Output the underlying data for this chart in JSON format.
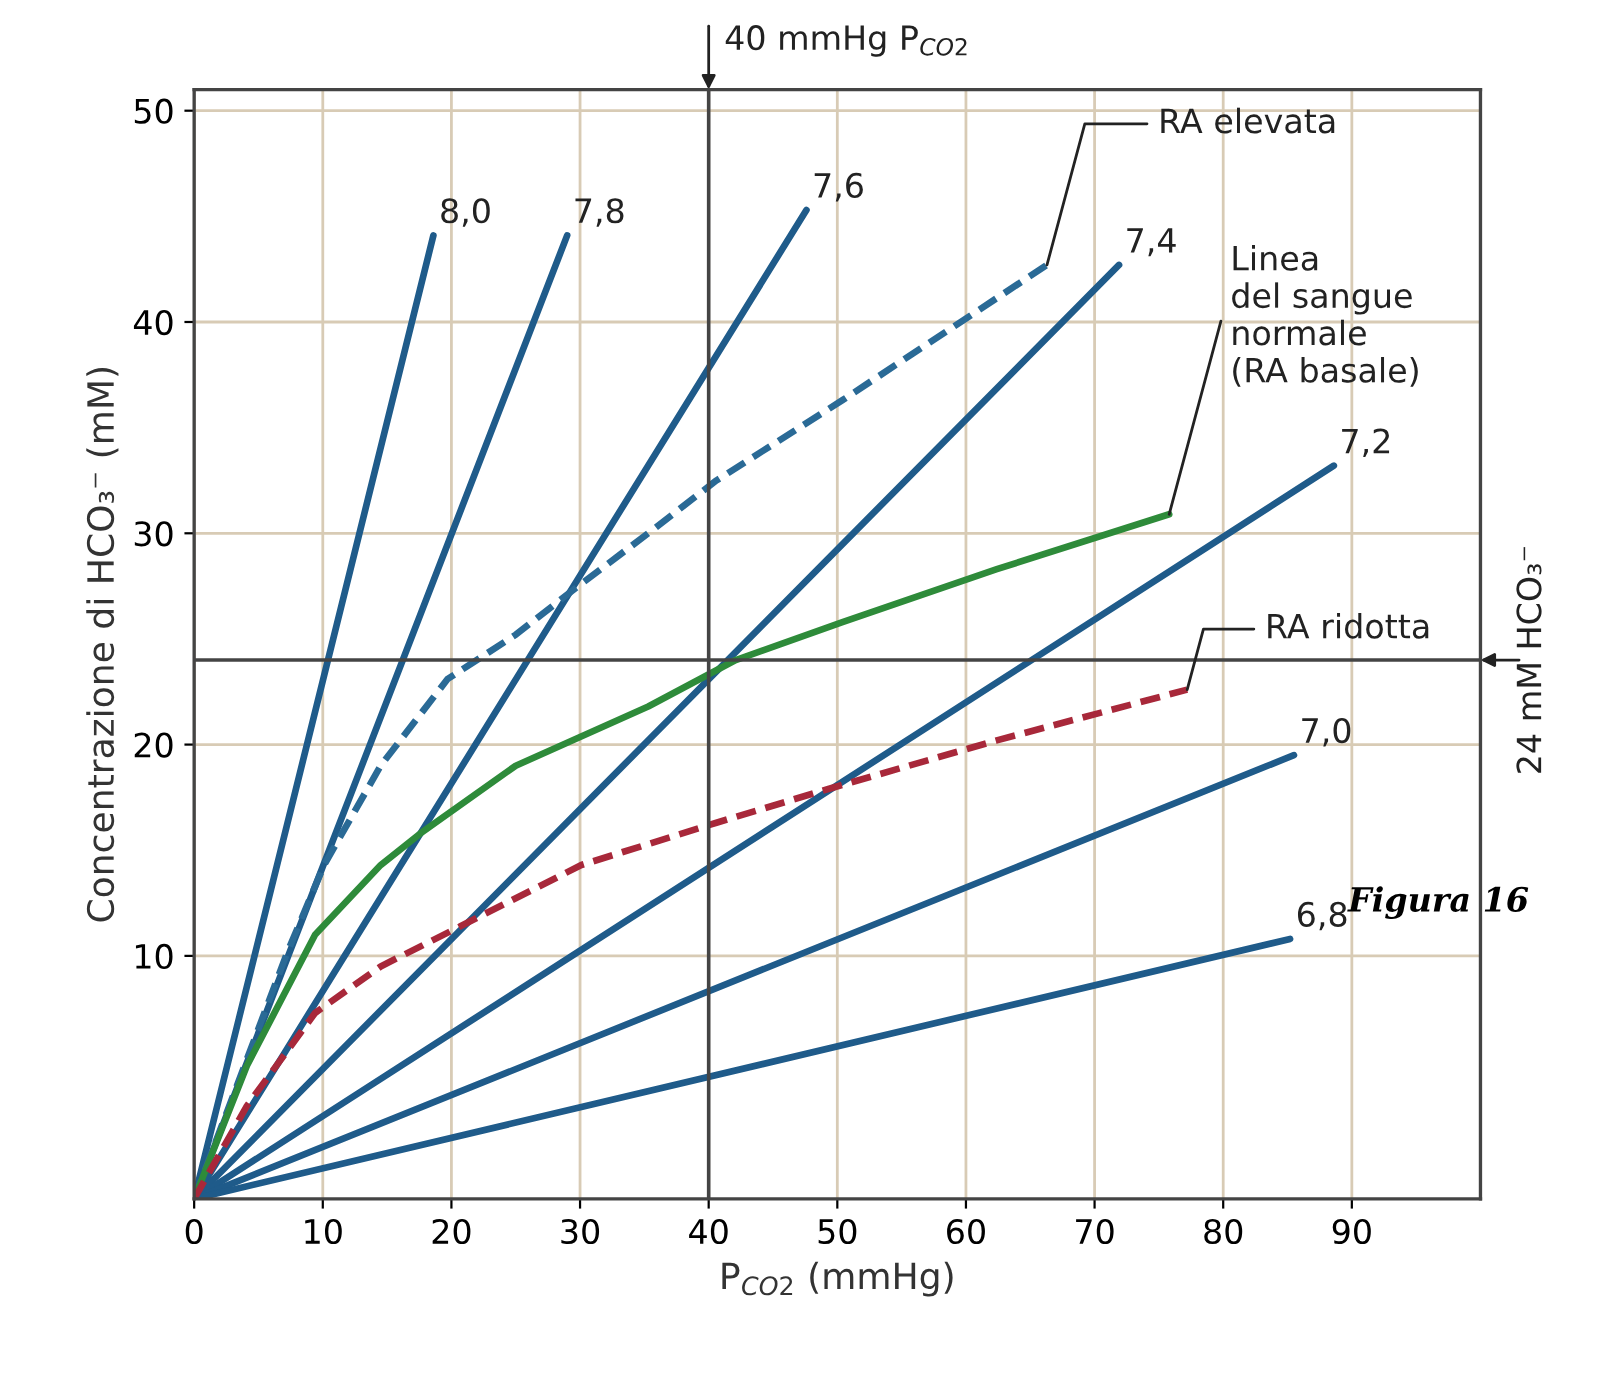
{
  "chart_data": {
    "type": "line",
    "xlabel": "P$_{CO2}$ (mmHg)",
    "ylabel": "Concentrazione di HCO₃⁻ (mM)",
    "xlim": [
      0,
      100
    ],
    "ylim": [
      -1.5,
      51
    ],
    "xticks": [
      0,
      10,
      20,
      30,
      40,
      50,
      60,
      70,
      80,
      90
    ],
    "yticks": [
      10,
      20,
      30,
      40,
      50
    ],
    "grid": true,
    "marker": "none",
    "series": [
      {
        "name": "8,0",
        "color": "#1f5b8a",
        "line_style": "solid",
        "x": [
          0,
          18.6
        ],
        "values": [
          -1.5,
          44.1
        ]
      },
      {
        "name": "7,8",
        "color": "#1f5b8a",
        "line_style": "solid",
        "x": [
          0,
          29
        ],
        "values": [
          -1.5,
          44.1
        ]
      },
      {
        "name": "7,6",
        "color": "#1f5b8a",
        "line_style": "solid",
        "x": [
          0,
          47.6
        ],
        "values": [
          -1.5,
          45.3
        ]
      },
      {
        "name": "7,4",
        "color": "#1f5b8a",
        "line_style": "solid",
        "x": [
          0,
          71.9
        ],
        "values": [
          -1.5,
          42.7
        ]
      },
      {
        "name": "7,2",
        "color": "#1f5b8a",
        "line_style": "solid",
        "x": [
          0,
          88.6
        ],
        "values": [
          -1.5,
          33.2
        ]
      },
      {
        "name": "7,0",
        "color": "#1f5b8a",
        "line_style": "solid",
        "x": [
          0,
          85.5
        ],
        "values": [
          -1.5,
          19.5
        ]
      },
      {
        "name": "6,8",
        "color": "#1f5b8a",
        "line_style": "solid",
        "x": [
          0,
          85.2
        ],
        "values": [
          -1.5,
          10.8
        ]
      },
      {
        "name": "RA elevata",
        "color": "#2a6a96",
        "line_style": "dashed",
        "x": [
          0,
          7.2,
          10.1,
          14.5,
          19.7,
          25,
          29,
          35.3,
          40.6,
          50.4,
          66.3
        ],
        "values": [
          -1.5,
          10.1,
          14.3,
          19,
          23.1,
          25.2,
          27.1,
          30,
          32.5,
          36.3,
          42.7
        ]
      },
      {
        "name": "Linea\ndel sangue\nnormale\n(RA basale)",
        "color": "#2e8b3a",
        "line_style": "solid",
        "x": [
          0,
          4.1,
          9.4,
          14.5,
          17.6,
          25,
          35.3,
          42.1,
          50.4,
          62.4,
          75.8
        ],
        "values": [
          -1.5,
          4.8,
          11,
          14.3,
          15.8,
          19,
          21.8,
          24,
          25.8,
          28.3,
          30.9
        ]
      },
      {
        "name": "RA ridotta",
        "color": "#a8283a",
        "line_style": "dashed",
        "x": [
          0,
          4.1,
          9.4,
          14.5,
          20.7,
          30.1,
          40.6,
          49.3,
          62.4,
          77.2
        ],
        "values": [
          -1.5,
          2.9,
          7.3,
          9.5,
          11.4,
          14.3,
          16.3,
          17.9,
          20.2,
          22.6
        ]
      }
    ],
    "ref_lines": [
      {
        "axis": "x",
        "value": 40,
        "label": "40 mmHg P$_{CO2}$",
        "color": "#444444"
      },
      {
        "axis": "y",
        "value": 24,
        "label": "24 mM HCO₃⁻",
        "color": "#444444"
      }
    ],
    "annotations": [
      "Figura 16"
    ]
  }
}
